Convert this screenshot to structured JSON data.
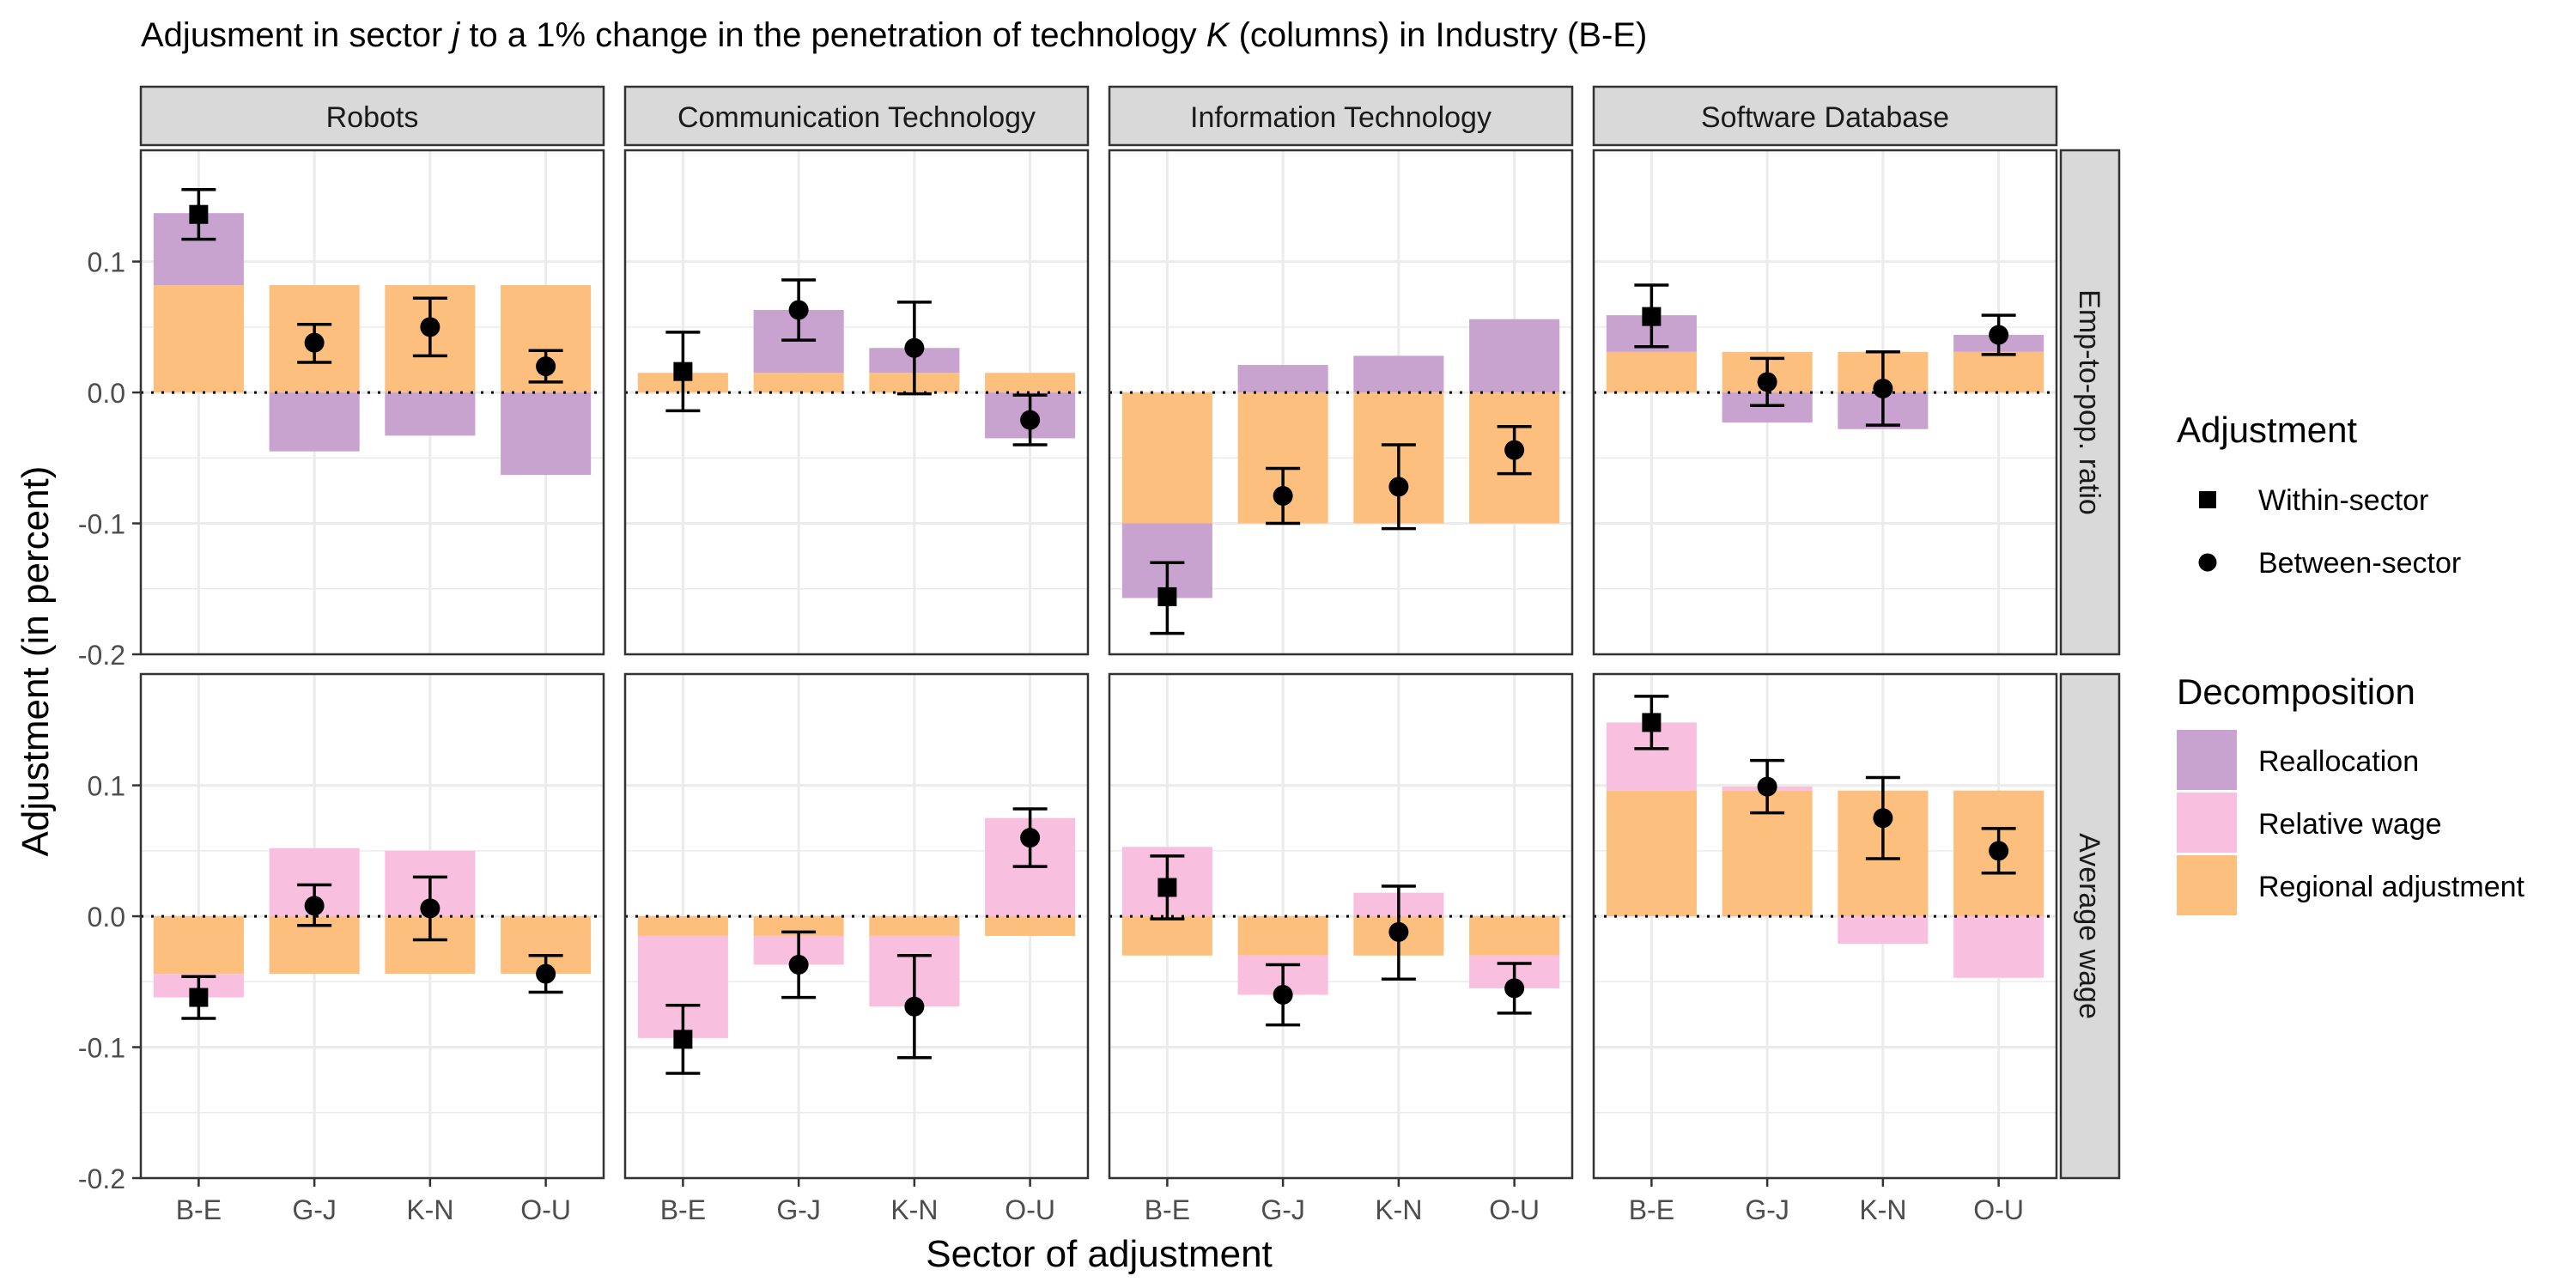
{
  "chart_data": {
    "type": "bar",
    "title": {
      "parts": [
        {
          "text": "Adjusment in sector ",
          "italic": false
        },
        {
          "text": "j",
          "italic": true
        },
        {
          "text": " to a 1% change in the penetration of technology ",
          "italic": false
        },
        {
          "text": "K",
          "italic": true
        },
        {
          "text": " (columns) in Industry (B-E)",
          "italic": false
        }
      ]
    },
    "xlabel": "Sector of adjustment",
    "ylabel": "Adjustment (in percent)",
    "categories": [
      "B-E",
      "G-J",
      "K-N",
      "O-U"
    ],
    "yticks": [
      -0.2,
      -0.1,
      0.0,
      0.1
    ],
    "ytick_labels": [
      "-0.2",
      "-0.1",
      "0.0",
      "0.1"
    ],
    "ylim": [
      -0.2,
      0.185
    ],
    "grid": true,
    "reference_line": 0,
    "columns": [
      "Robots",
      "Communication Technology",
      "Information Technology",
      "Software Database"
    ],
    "rows": [
      "Emp-to-pop. ratio",
      "Average wage"
    ],
    "colors": {
      "reallocation": "#c9a3d0",
      "relative_wage": "#f9bfdf",
      "regional": "#fdbf7e",
      "panel_strip": "#d9d9d9",
      "grid": "#ebebeb"
    },
    "legend": {
      "position": "right",
      "adjustment_title": "Adjustment",
      "adjustment_items": [
        {
          "label": "Within-sector",
          "shape": "square"
        },
        {
          "label": "Between-sector",
          "shape": "circle"
        }
      ],
      "decomposition_title": "Decomposition",
      "decomposition_items": [
        {
          "label": "Reallocation",
          "key": "reallocation"
        },
        {
          "label": "Relative wage",
          "key": "relative_wage"
        },
        {
          "label": "Regional adjustment",
          "key": "regional"
        }
      ]
    },
    "panels": [
      {
        "row": 0,
        "col": 0,
        "bars": [
          {
            "cat": "B-E",
            "regional": [
              0,
              0.082
            ],
            "overlay": "reallocation",
            "overlay_range": [
              0.082,
              0.137
            ],
            "point": 0.136,
            "ci": [
              0.117,
              0.155
            ],
            "shape": "square"
          },
          {
            "cat": "G-J",
            "regional": [
              0,
              0.082
            ],
            "overlay": "reallocation",
            "overlay_range": [
              -0.045,
              0
            ],
            "point": 0.038,
            "ci": [
              0.023,
              0.052
            ],
            "shape": "circle"
          },
          {
            "cat": "K-N",
            "regional": [
              0,
              0.082
            ],
            "overlay": "reallocation",
            "overlay_range": [
              -0.033,
              0
            ],
            "point": 0.05,
            "ci": [
              0.028,
              0.072
            ],
            "shape": "circle"
          },
          {
            "cat": "O-U",
            "regional": [
              0,
              0.082
            ],
            "overlay": "reallocation",
            "overlay_range": [
              -0.063,
              0
            ],
            "point": 0.02,
            "ci": [
              0.008,
              0.032
            ],
            "shape": "circle"
          }
        ]
      },
      {
        "row": 0,
        "col": 1,
        "bars": [
          {
            "cat": "B-E",
            "regional": [
              0,
              0.015
            ],
            "overlay": "reallocation",
            "overlay_range": [
              0,
              0
            ],
            "point": 0.016,
            "ci": [
              -0.014,
              0.046
            ],
            "shape": "square"
          },
          {
            "cat": "G-J",
            "regional": [
              0,
              0.015
            ],
            "overlay": "reallocation",
            "overlay_range": [
              0.015,
              0.063
            ],
            "point": 0.063,
            "ci": [
              0.04,
              0.086
            ],
            "shape": "circle"
          },
          {
            "cat": "K-N",
            "regional": [
              0,
              0.015
            ],
            "overlay": "reallocation",
            "overlay_range": [
              0.015,
              0.034
            ],
            "point": 0.034,
            "ci": [
              -0.001,
              0.069
            ],
            "shape": "circle"
          },
          {
            "cat": "O-U",
            "regional": [
              0,
              0.015
            ],
            "overlay": "reallocation",
            "overlay_range": [
              -0.035,
              0
            ],
            "point": -0.021,
            "ci": [
              -0.04,
              -0.002
            ],
            "shape": "circle"
          }
        ]
      },
      {
        "row": 0,
        "col": 2,
        "bars": [
          {
            "cat": "B-E",
            "regional": [
              -0.1,
              0
            ],
            "overlay": "reallocation",
            "overlay_range": [
              -0.157,
              -0.1
            ],
            "point": -0.156,
            "ci": [
              -0.184,
              -0.13
            ],
            "shape": "square"
          },
          {
            "cat": "G-J",
            "regional": [
              -0.1,
              0
            ],
            "overlay": "reallocation",
            "overlay_range": [
              0,
              0.021
            ],
            "point": -0.079,
            "ci": [
              -0.1,
              -0.058
            ],
            "shape": "circle"
          },
          {
            "cat": "K-N",
            "regional": [
              -0.1,
              0
            ],
            "overlay": "reallocation",
            "overlay_range": [
              0,
              0.028
            ],
            "point": -0.072,
            "ci": [
              -0.104,
              -0.04
            ],
            "shape": "circle"
          },
          {
            "cat": "O-U",
            "regional": [
              -0.1,
              0
            ],
            "overlay": "reallocation",
            "overlay_range": [
              0,
              0.056
            ],
            "point": -0.044,
            "ci": [
              -0.062,
              -0.026
            ],
            "shape": "circle"
          }
        ]
      },
      {
        "row": 0,
        "col": 3,
        "bars": [
          {
            "cat": "B-E",
            "regional": [
              0,
              0.031
            ],
            "overlay": "reallocation",
            "overlay_range": [
              0.031,
              0.059
            ],
            "point": 0.058,
            "ci": [
              0.035,
              0.082
            ],
            "shape": "square"
          },
          {
            "cat": "G-J",
            "regional": [
              0,
              0.031
            ],
            "overlay": "reallocation",
            "overlay_range": [
              -0.023,
              0
            ],
            "point": 0.008,
            "ci": [
              -0.01,
              0.026
            ],
            "shape": "circle"
          },
          {
            "cat": "K-N",
            "regional": [
              0,
              0.031
            ],
            "overlay": "reallocation",
            "overlay_range": [
              -0.028,
              0
            ],
            "point": 0.003,
            "ci": [
              -0.025,
              0.031
            ],
            "shape": "circle"
          },
          {
            "cat": "O-U",
            "regional": [
              0,
              0.031
            ],
            "overlay": "reallocation",
            "overlay_range": [
              0.031,
              0.044
            ],
            "point": 0.044,
            "ci": [
              0.029,
              0.059
            ],
            "shape": "circle"
          }
        ]
      },
      {
        "row": 1,
        "col": 0,
        "bars": [
          {
            "cat": "B-E",
            "regional": [
              -0.044,
              0
            ],
            "overlay": "relative_wage",
            "overlay_range": [
              -0.062,
              -0.044
            ],
            "point": -0.062,
            "ci": [
              -0.078,
              -0.046
            ],
            "shape": "square"
          },
          {
            "cat": "G-J",
            "regional": [
              -0.044,
              0
            ],
            "overlay": "relative_wage",
            "overlay_range": [
              0,
              0.052
            ],
            "point": 0.008,
            "ci": [
              -0.007,
              0.024
            ],
            "shape": "circle"
          },
          {
            "cat": "K-N",
            "regional": [
              -0.044,
              0
            ],
            "overlay": "relative_wage",
            "overlay_range": [
              0,
              0.05
            ],
            "point": 0.006,
            "ci": [
              -0.018,
              0.03
            ],
            "shape": "circle"
          },
          {
            "cat": "O-U",
            "regional": [
              -0.044,
              0
            ],
            "overlay": "relative_wage",
            "overlay_range": [
              0,
              0
            ],
            "point": -0.044,
            "ci": [
              -0.058,
              -0.03
            ],
            "shape": "circle"
          }
        ]
      },
      {
        "row": 1,
        "col": 1,
        "bars": [
          {
            "cat": "B-E",
            "regional": [
              -0.015,
              0
            ],
            "overlay": "relative_wage",
            "overlay_range": [
              -0.093,
              -0.015
            ],
            "point": -0.094,
            "ci": [
              -0.12,
              -0.068
            ],
            "shape": "square"
          },
          {
            "cat": "G-J",
            "regional": [
              -0.015,
              0
            ],
            "overlay": "relative_wage",
            "overlay_range": [
              -0.037,
              -0.015
            ],
            "point": -0.037,
            "ci": [
              -0.062,
              -0.012
            ],
            "shape": "circle"
          },
          {
            "cat": "K-N",
            "regional": [
              -0.015,
              0
            ],
            "overlay": "relative_wage",
            "overlay_range": [
              -0.069,
              -0.015
            ],
            "point": -0.069,
            "ci": [
              -0.108,
              -0.03
            ],
            "shape": "circle"
          },
          {
            "cat": "O-U",
            "regional": [
              -0.015,
              0
            ],
            "overlay": "relative_wage",
            "overlay_range": [
              0,
              0.075
            ],
            "point": 0.06,
            "ci": [
              0.038,
              0.082
            ],
            "shape": "circle"
          }
        ]
      },
      {
        "row": 1,
        "col": 2,
        "bars": [
          {
            "cat": "B-E",
            "regional": [
              -0.03,
              0
            ],
            "overlay": "relative_wage",
            "overlay_range": [
              0,
              0.053
            ],
            "point": 0.022,
            "ci": [
              -0.002,
              0.046
            ],
            "shape": "square"
          },
          {
            "cat": "G-J",
            "regional": [
              -0.03,
              0
            ],
            "overlay": "relative_wage",
            "overlay_range": [
              -0.06,
              -0.03
            ],
            "point": -0.06,
            "ci": [
              -0.083,
              -0.037
            ],
            "shape": "circle"
          },
          {
            "cat": "K-N",
            "regional": [
              -0.03,
              0
            ],
            "overlay": "relative_wage",
            "overlay_range": [
              0,
              0.018
            ],
            "point": -0.012,
            "ci": [
              -0.048,
              0.023
            ],
            "shape": "circle"
          },
          {
            "cat": "O-U",
            "regional": [
              -0.03,
              0
            ],
            "overlay": "relative_wage",
            "overlay_range": [
              -0.055,
              -0.03
            ],
            "point": -0.055,
            "ci": [
              -0.074,
              -0.036
            ],
            "shape": "circle"
          }
        ]
      },
      {
        "row": 1,
        "col": 3,
        "bars": [
          {
            "cat": "B-E",
            "regional": [
              0,
              0.096
            ],
            "overlay": "relative_wage",
            "overlay_range": [
              0.096,
              0.148
            ],
            "point": 0.148,
            "ci": [
              0.128,
              0.168
            ],
            "shape": "square"
          },
          {
            "cat": "G-J",
            "regional": [
              0,
              0.096
            ],
            "overlay": "relative_wage",
            "overlay_range": [
              0.096,
              0.099
            ],
            "point": 0.099,
            "ci": [
              0.079,
              0.119
            ],
            "shape": "circle"
          },
          {
            "cat": "K-N",
            "regional": [
              0,
              0.096
            ],
            "overlay": "relative_wage",
            "overlay_range": [
              -0.021,
              0
            ],
            "point": 0.075,
            "ci": [
              0.044,
              0.106
            ],
            "shape": "circle"
          },
          {
            "cat": "O-U",
            "regional": [
              0,
              0.096
            ],
            "overlay": "relative_wage",
            "overlay_range": [
              -0.047,
              0
            ],
            "point": 0.05,
            "ci": [
              0.033,
              0.067
            ],
            "shape": "circle"
          }
        ]
      }
    ]
  }
}
